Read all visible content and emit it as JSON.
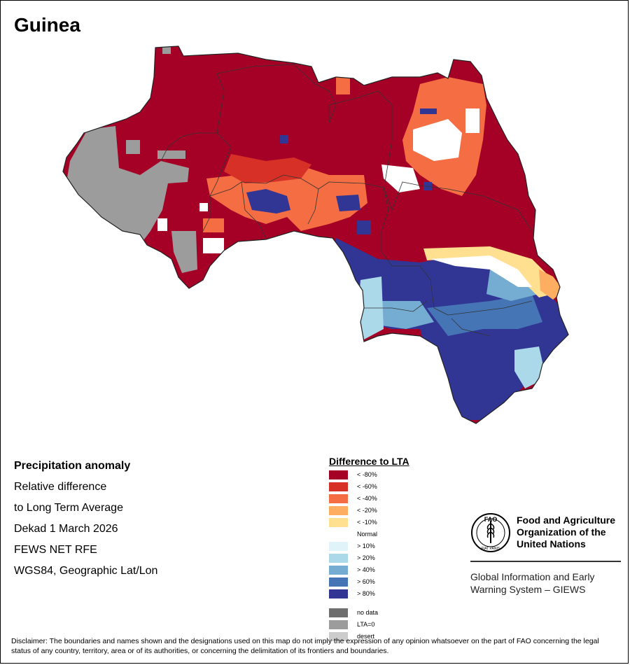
{
  "map": {
    "title": "Guinea"
  },
  "info": {
    "title": "Precipitation anomaly",
    "line1": "Relative difference",
    "line2": "to Long Term Average",
    "period": "Dekad 1 March 2026",
    "source": "FEWS NET RFE",
    "projection": "WGS84, Geographic Lat/Lon"
  },
  "legend": {
    "title": "Difference to LTA",
    "items": [
      {
        "label": "< -80%",
        "color": "#a50026"
      },
      {
        "label": "< -60%",
        "color": "#d73027"
      },
      {
        "label": "< -40%",
        "color": "#f46d43"
      },
      {
        "label": "< -20%",
        "color": "#fdae61"
      },
      {
        "label": "< -10%",
        "color": "#fee090"
      },
      {
        "label": "Normal",
        "color": "#ffffff"
      },
      {
        "label": "> 10%",
        "color": "#e0f3f8"
      },
      {
        "label": "> 20%",
        "color": "#abd9e9"
      },
      {
        "label": "> 40%",
        "color": "#74add1"
      },
      {
        "label": "> 60%",
        "color": "#4575b4"
      },
      {
        "label": "> 80%",
        "color": "#313695"
      }
    ],
    "extras": [
      {
        "label": "no data",
        "color": "#6e6e6e"
      },
      {
        "label": "LTA=0",
        "color": "#9c9c9c"
      },
      {
        "label": "desert",
        "color": "#cccccc"
      }
    ]
  },
  "org": {
    "name_line1": "Food and Agriculture",
    "name_line2": "Organization of the",
    "name_line3": "United Nations",
    "logo_text": "FAO",
    "logo_motto": "FIAT PANIS",
    "system_line1": "Global Information and Early",
    "system_line2": "Warning System – GIEWS"
  },
  "disclaimer": "Disclaimer: The boundaries and names shown and the designations used on this map do not imply the expression of any opinion whatsoever on the part of FAO concerning the legal status of any country, territory, area or of its authorities, or concerning the delimitation of its frontiers and boundaries."
}
